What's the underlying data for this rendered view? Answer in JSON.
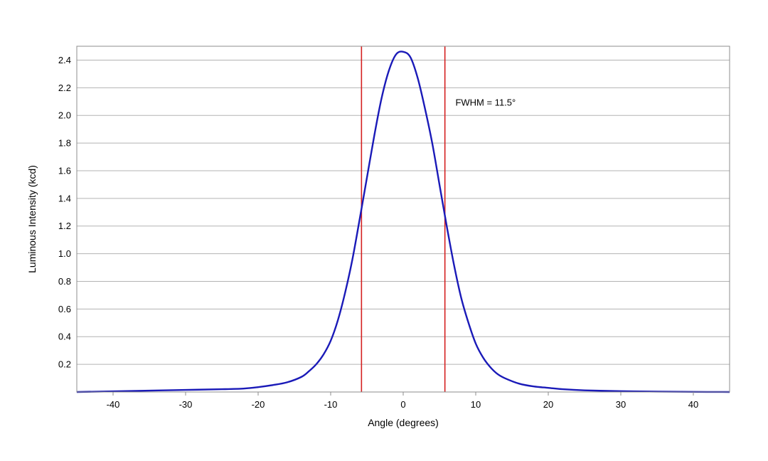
{
  "chart_data": {
    "type": "line",
    "title": "",
    "xlabel": "Angle (degrees)",
    "ylabel": "Luminous Intensity (kcd)",
    "xlim": [
      -45,
      45
    ],
    "ylim": [
      0,
      2.5
    ],
    "x_ticks": [
      -40,
      -30,
      -20,
      -10,
      0,
      10,
      20,
      30,
      40
    ],
    "x_tick_labels": [
      "-40",
      "-30",
      "-20",
      "-10",
      "0",
      "10",
      "20",
      "30",
      "40"
    ],
    "y_ticks": [
      0.2,
      0.4,
      0.6,
      0.8,
      1.0,
      1.2,
      1.4,
      1.6,
      1.8,
      2.0,
      2.2,
      2.4
    ],
    "y_tick_labels": [
      "0.2",
      "0.4",
      "0.6",
      "0.8",
      "1.0",
      "1.2",
      "1.4",
      "1.6",
      "1.8",
      "2.0",
      "2.2",
      "2.4"
    ],
    "grid": "horizontal",
    "legend": "none",
    "series": [
      {
        "color": "#1a1ab8",
        "x": [
          -45,
          -40,
          -35,
          -30,
          -25,
          -22,
          -20,
          -18,
          -16,
          -14,
          -13,
          -12,
          -11,
          -10,
          -9,
          -8,
          -7,
          -6,
          -5,
          -4,
          -3,
          -2,
          -1,
          0,
          1,
          2,
          3,
          4,
          5,
          6,
          7,
          8,
          9,
          10,
          11,
          12,
          13,
          14,
          16,
          18,
          20,
          22,
          25,
          30,
          35,
          40,
          45
        ],
        "y": [
          0.0,
          0.005,
          0.01,
          0.015,
          0.02,
          0.025,
          0.035,
          0.05,
          0.07,
          0.11,
          0.15,
          0.2,
          0.27,
          0.37,
          0.52,
          0.72,
          0.96,
          1.25,
          1.55,
          1.85,
          2.12,
          2.32,
          2.44,
          2.46,
          2.42,
          2.27,
          2.05,
          1.8,
          1.5,
          1.2,
          0.92,
          0.68,
          0.5,
          0.35,
          0.25,
          0.18,
          0.13,
          0.1,
          0.06,
          0.04,
          0.03,
          0.02,
          0.012,
          0.006,
          0.003,
          0.001,
          0.0
        ]
      }
    ],
    "vertical_lines": [
      {
        "x": -5.75,
        "color": "#d42020"
      },
      {
        "x": 5.75,
        "color": "#d42020"
      }
    ],
    "annotations": [
      {
        "text": "FWHM = 11.5°",
        "x": 7.2,
        "y": 2.07
      }
    ]
  }
}
